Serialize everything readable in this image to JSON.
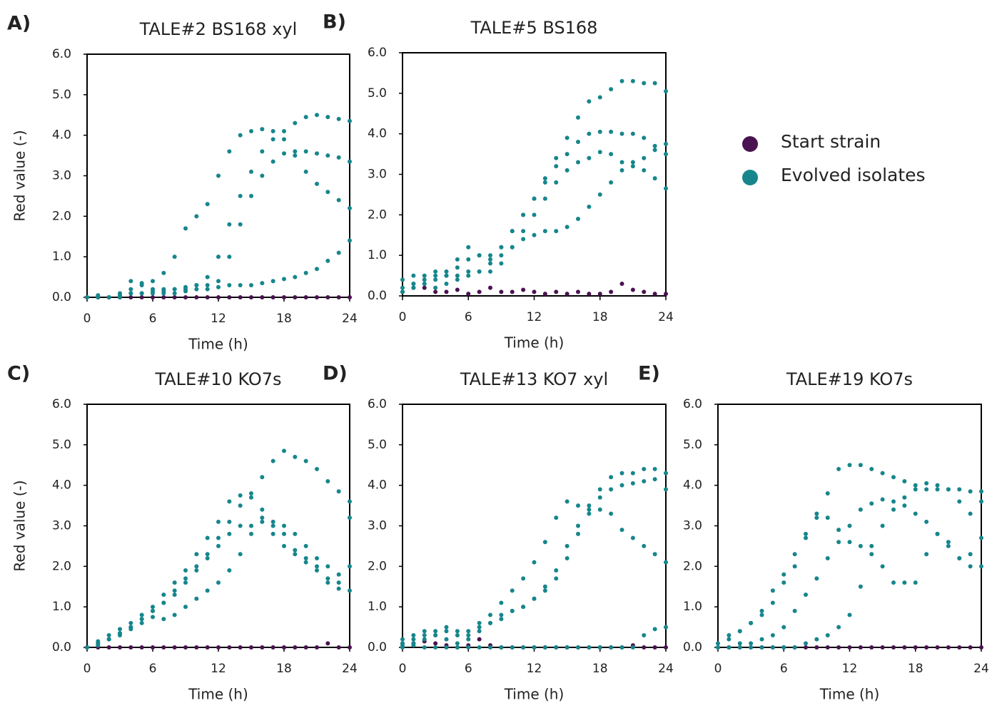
{
  "chart_data": [
    {
      "type": "scatter",
      "label": "A)",
      "title": "TALE#2 BS168 xyl",
      "xlabel": "Time (h)",
      "ylabel": "Red value (-)",
      "x": [
        0,
        1,
        2,
        3,
        4,
        5,
        6,
        7,
        8,
        9,
        10,
        11,
        12,
        13,
        14,
        15,
        16,
        17,
        18,
        19,
        20,
        21,
        22,
        23,
        24
      ],
      "xlim": [
        0,
        24
      ],
      "xticks": [
        0,
        6,
        12,
        18,
        24
      ],
      "ylim": [
        0,
        6
      ],
      "yticks": [
        {
          "value": 0,
          "label": "0.0"
        },
        {
          "value": 1,
          "label": "1.0"
        },
        {
          "value": 2,
          "label": "2.0"
        },
        {
          "value": 3,
          "label": "3.0"
        },
        {
          "value": 4,
          "label": "4.0"
        },
        {
          "value": 5,
          "label": "5.0"
        },
        {
          "value": 6,
          "label": "6.0"
        }
      ],
      "series": [
        {
          "name": "Start strain",
          "color": "#4a1250",
          "values": [
            0,
            0,
            0,
            0,
            0,
            0,
            0,
            0,
            0,
            0,
            0,
            0,
            0,
            0,
            0,
            0,
            0,
            0,
            0,
            0,
            0,
            0,
            0,
            0,
            0
          ]
        },
        {
          "name": "Evolved isolates",
          "color": "#16868c",
          "values": [
            0,
            0,
            0,
            0.05,
            0.2,
            0.3,
            0.4,
            0.6,
            1.0,
            1.7,
            2.0,
            2.3,
            3.0,
            3.6,
            4.0,
            4.1,
            4.15,
            4.1,
            3.9,
            3.5,
            3.1,
            2.8,
            2.6,
            2.4,
            2.2
          ]
        },
        {
          "name": "Evolved isolates",
          "color": "#16868c",
          "values": [
            0,
            0,
            0,
            0,
            0.1,
            0.1,
            0.15,
            0.15,
            0.1,
            0.15,
            0.3,
            0.5,
            1.0,
            1.8,
            2.5,
            3.1,
            3.6,
            3.9,
            4.1,
            4.3,
            4.45,
            4.5,
            4.45,
            4.4,
            4.35
          ]
        },
        {
          "name": "Evolved isolates",
          "color": "#16868c",
          "values": [
            0,
            0,
            0,
            0,
            0.1,
            0.1,
            0.1,
            0.2,
            0.2,
            0.2,
            0.3,
            0.3,
            0.4,
            1.0,
            1.8,
            2.5,
            3.0,
            3.35,
            3.55,
            3.6,
            3.6,
            3.55,
            3.5,
            3.45,
            3.35
          ]
        },
        {
          "name": "Evolved isolates",
          "color": "#16868c",
          "values": [
            0,
            0.05,
            0,
            0.1,
            0.4,
            0.35,
            0.2,
            0.1,
            0.2,
            0.25,
            0.2,
            0.2,
            0.25,
            0.3,
            0.3,
            0.3,
            0.35,
            0.4,
            0.45,
            0.5,
            0.6,
            0.7,
            0.9,
            1.1,
            1.4
          ]
        }
      ]
    },
    {
      "type": "scatter",
      "label": "B)",
      "title": "TALE#5 BS168",
      "xlabel": "Time (h)",
      "x": [
        0,
        1,
        2,
        3,
        4,
        5,
        6,
        7,
        8,
        9,
        10,
        11,
        12,
        13,
        14,
        15,
        16,
        17,
        18,
        19,
        20,
        21,
        22,
        23,
        24
      ],
      "xlim": [
        0,
        24
      ],
      "xticks": [
        0,
        6,
        12,
        18,
        24
      ],
      "ylim": [
        0,
        6
      ],
      "yticks": [
        {
          "value": 0,
          "label": "0.0"
        },
        {
          "value": 1,
          "label": "1.0"
        },
        {
          "value": 2,
          "label": "2.0"
        },
        {
          "value": 3,
          "label": "3.0"
        },
        {
          "value": 4,
          "label": "4.0"
        },
        {
          "value": 5,
          "label": "5.0"
        },
        {
          "value": 6,
          "label": "6.0"
        }
      ],
      "series": [
        {
          "name": "Start strain",
          "color": "#4a1250",
          "values": [
            0.1,
            0.2,
            0.2,
            0.1,
            0.1,
            0.15,
            0.05,
            0.1,
            0.2,
            0.1,
            0.1,
            0.15,
            0.1,
            0.05,
            0.1,
            0.05,
            0.1,
            0.05,
            0.05,
            0.1,
            0.3,
            0.15,
            0.1,
            0.05,
            0.05
          ]
        },
        {
          "name": "Evolved isolates",
          "color": "#16868c",
          "values": [
            0.1,
            0.3,
            0.4,
            0.5,
            0.6,
            0.7,
            0.9,
            1.0,
            1.0,
            1.2,
            1.6,
            2.0,
            2.4,
            2.9,
            3.4,
            3.9,
            4.4,
            4.8,
            4.9,
            5.1,
            5.3,
            5.3,
            5.25,
            5.25,
            5.05
          ]
        },
        {
          "name": "Evolved isolates",
          "color": "#16868c",
          "values": [
            0.4,
            0.5,
            0.5,
            0.6,
            0.5,
            0.5,
            0.6,
            0.6,
            0.8,
            1.2,
            1.6,
            2.0,
            2.4,
            2.8,
            3.2,
            3.5,
            3.8,
            4.0,
            4.05,
            4.05,
            4.0,
            4.0,
            3.9,
            3.7,
            3.5
          ]
        },
        {
          "name": "Evolved isolates",
          "color": "#16868c",
          "values": [
            0.2,
            0.3,
            0.3,
            0.2,
            0.3,
            0.4,
            0.5,
            0.6,
            0.6,
            0.8,
            1.2,
            1.6,
            2.0,
            2.4,
            2.8,
            3.1,
            3.3,
            3.4,
            3.55,
            3.5,
            3.3,
            3.2,
            3.1,
            2.9,
            2.65
          ]
        },
        {
          "name": "Evolved isolates",
          "color": "#16868c",
          "values": [
            0.1,
            0.2,
            0.3,
            0.4,
            0.5,
            0.9,
            1.2,
            1.0,
            0.9,
            1.0,
            1.2,
            1.4,
            1.5,
            1.6,
            1.6,
            1.7,
            1.9,
            2.2,
            2.5,
            2.8,
            3.1,
            3.3,
            3.4,
            3.6,
            3.75
          ]
        }
      ]
    },
    {
      "type": "scatter",
      "label": "C)",
      "title": "TALE#10 KO7s",
      "xlabel": "Time (h)",
      "ylabel": "Red value (-)",
      "x": [
        0,
        1,
        2,
        3,
        4,
        5,
        6,
        7,
        8,
        9,
        10,
        11,
        12,
        13,
        14,
        15,
        16,
        17,
        18,
        19,
        20,
        21,
        22,
        23,
        24
      ],
      "xlim": [
        0,
        24
      ],
      "xticks": [
        0,
        6,
        12,
        18,
        24
      ],
      "ylim": [
        0,
        6
      ],
      "yticks": [
        {
          "value": 0,
          "label": "0.0"
        },
        {
          "value": 1,
          "label": "1.0"
        },
        {
          "value": 2,
          "label": "2.0"
        },
        {
          "value": 3,
          "label": "3.0"
        },
        {
          "value": 4,
          "label": "4.0"
        },
        {
          "value": 5,
          "label": "5.0"
        },
        {
          "value": 6,
          "label": "6.0"
        }
      ],
      "series": [
        {
          "name": "Start strain",
          "color": "#4a1250",
          "values": [
            0,
            0,
            0,
            0,
            0,
            0,
            0,
            0,
            0,
            0,
            0,
            0,
            0,
            0,
            0,
            0,
            0,
            0,
            0,
            0,
            0,
            0,
            0.1,
            0,
            0
          ]
        },
        {
          "name": "Evolved isolates",
          "color": "#16868c",
          "values": [
            0,
            0.1,
            0.2,
            0.35,
            0.5,
            0.7,
            0.9,
            1.1,
            1.4,
            1.7,
            2.0,
            2.3,
            2.7,
            3.1,
            3.5,
            3.8,
            4.2,
            4.6,
            4.85,
            4.7,
            4.6,
            4.4,
            4.1,
            3.85,
            3.6
          ]
        },
        {
          "name": "Evolved isolates",
          "color": "#16868c",
          "values": [
            0,
            0.15,
            0.3,
            0.45,
            0.6,
            0.8,
            1.0,
            1.3,
            1.6,
            1.9,
            2.3,
            2.7,
            3.1,
            3.6,
            3.75,
            3.7,
            3.4,
            3.0,
            2.8,
            2.4,
            2.1,
            1.9,
            1.6,
            1.45,
            1.4
          ]
        },
        {
          "name": "Evolved isolates",
          "color": "#16868c",
          "values": [
            0,
            0.1,
            0.2,
            0.35,
            0.5,
            0.7,
            0.9,
            1.1,
            1.3,
            1.6,
            1.9,
            2.2,
            2.5,
            2.8,
            3.0,
            3.0,
            3.2,
            3.1,
            3.0,
            2.8,
            2.5,
            2.2,
            2.0,
            1.8,
            2.0
          ]
        },
        {
          "name": "Evolved isolates",
          "color": "#16868c",
          "values": [
            0,
            0.05,
            0.2,
            0.3,
            0.45,
            0.6,
            0.75,
            0.7,
            0.8,
            1.0,
            1.2,
            1.4,
            1.6,
            1.9,
            2.3,
            2.8,
            3.1,
            2.8,
            2.5,
            2.3,
            2.2,
            2.0,
            1.7,
            1.6,
            3.2
          ]
        }
      ]
    },
    {
      "type": "scatter",
      "label": "D)",
      "title": "TALE#13 KO7 xyl",
      "xlabel": "Time (h)",
      "x": [
        0,
        1,
        2,
        3,
        4,
        5,
        6,
        7,
        8,
        9,
        10,
        11,
        12,
        13,
        14,
        15,
        16,
        17,
        18,
        19,
        20,
        21,
        22,
        23,
        24
      ],
      "xlim": [
        0,
        24
      ],
      "xticks": [
        0,
        6,
        12,
        18,
        24
      ],
      "ylim": [
        0,
        6
      ],
      "yticks": [
        {
          "value": 0,
          "label": "0.0"
        },
        {
          "value": 1,
          "label": "1.0"
        },
        {
          "value": 2,
          "label": "2.0"
        },
        {
          "value": 3,
          "label": "3.0"
        },
        {
          "value": 4,
          "label": "4.0"
        },
        {
          "value": 5,
          "label": "5.0"
        },
        {
          "value": 6,
          "label": "6.0"
        }
      ],
      "series": [
        {
          "name": "Start strain",
          "color": "#4a1250",
          "values": [
            0.1,
            0.1,
            0.15,
            0.1,
            0.05,
            0,
            0.05,
            0.2,
            0.05,
            0,
            0,
            0,
            0,
            0,
            0,
            0,
            0,
            0,
            0,
            0,
            0,
            0.05,
            0,
            0,
            0
          ]
        },
        {
          "name": "Evolved isolates",
          "color": "#16868c",
          "values": [
            0.1,
            0.2,
            0.3,
            0.4,
            0.4,
            0.3,
            0.4,
            0.6,
            0.8,
            1.1,
            1.4,
            1.7,
            2.1,
            2.6,
            3.2,
            3.6,
            3.5,
            3.4,
            3.4,
            3.3,
            2.9,
            2.7,
            2.5,
            2.3,
            2.1
          ]
        },
        {
          "name": "Evolved isolates",
          "color": "#16868c",
          "values": [
            0.2,
            0.3,
            0.4,
            0.3,
            0.5,
            0.4,
            0.3,
            0.5,
            0.6,
            0.8,
            0.9,
            1.0,
            1.2,
            1.5,
            1.9,
            2.5,
            3.0,
            3.5,
            3.9,
            4.2,
            4.3,
            4.3,
            4.4,
            4.4,
            4.3
          ]
        },
        {
          "name": "Evolved isolates",
          "color": "#16868c",
          "values": [
            0.05,
            0.1,
            0.2,
            0.3,
            0.2,
            0.1,
            0.2,
            0.4,
            0.6,
            0.7,
            0.9,
            1.0,
            1.2,
            1.4,
            1.7,
            2.2,
            2.8,
            3.3,
            3.7,
            3.9,
            4.0,
            4.05,
            4.1,
            4.15,
            3.9
          ]
        },
        {
          "name": "Evolved isolates",
          "color": "#16868c",
          "values": [
            0,
            0.05,
            0,
            0,
            0,
            0,
            0,
            0,
            0,
            0,
            0,
            0,
            0,
            0,
            0,
            0,
            0,
            0,
            0,
            0,
            0,
            0,
            0.3,
            0.45,
            0.5
          ]
        }
      ]
    },
    {
      "type": "scatter",
      "label": "E)",
      "title": "TALE#19 KO7s",
      "xlabel": "Time (h)",
      "x": [
        0,
        1,
        2,
        3,
        4,
        5,
        6,
        7,
        8,
        9,
        10,
        11,
        12,
        13,
        14,
        15,
        16,
        17,
        18,
        19,
        20,
        21,
        22,
        23,
        24
      ],
      "xlim": [
        0,
        24
      ],
      "xticks": [
        0,
        6,
        12,
        18,
        24
      ],
      "ylim": [
        0,
        6
      ],
      "yticks": [
        {
          "value": 0,
          "label": "0.0"
        },
        {
          "value": 1,
          "label": "1.0"
        },
        {
          "value": 2,
          "label": "2.0"
        },
        {
          "value": 3,
          "label": "3.0"
        },
        {
          "value": 4,
          "label": "4.0"
        },
        {
          "value": 5,
          "label": "5.0"
        },
        {
          "value": 6,
          "label": "6.0"
        }
      ],
      "series": [
        {
          "name": "Start strain",
          "color": "#4a1250",
          "values": [
            0,
            0,
            0,
            0,
            0,
            0,
            0,
            0,
            0,
            0,
            0,
            0,
            0,
            0,
            0,
            0,
            0,
            0,
            0,
            0,
            0,
            0,
            0,
            0,
            0
          ]
        },
        {
          "name": "Evolved isolates",
          "color": "#16868c",
          "values": [
            0.1,
            0.3,
            0.4,
            0.6,
            0.8,
            1.1,
            1.6,
            2.0,
            2.7,
            3.3,
            3.8,
            4.4,
            4.5,
            4.5,
            4.4,
            4.3,
            4.2,
            4.1,
            4.0,
            3.9,
            3.9,
            3.9,
            3.9,
            3.85,
            3.85
          ]
        },
        {
          "name": "Evolved isolates",
          "color": "#16868c",
          "values": [
            0,
            0.2,
            0.4,
            0.6,
            0.9,
            1.4,
            1.8,
            2.3,
            2.8,
            3.2,
            3.2,
            2.9,
            2.6,
            2.5,
            2.3,
            2.0,
            1.6,
            1.6,
            1.6,
            2.3,
            2.8,
            2.6,
            2.2,
            2.3,
            2.7
          ]
        },
        {
          "name": "Evolved isolates",
          "color": "#16868c",
          "values": [
            0,
            0,
            0.1,
            0.1,
            0.2,
            0.3,
            0.5,
            0.9,
            1.3,
            1.7,
            2.2,
            2.6,
            3.0,
            3.4,
            3.55,
            3.65,
            3.6,
            3.5,
            3.3,
            3.1,
            2.8,
            2.5,
            2.2,
            2.0,
            2.0
          ]
        },
        {
          "name": "Evolved isolates",
          "color": "#16868c",
          "values": [
            0,
            0,
            0,
            0,
            0,
            0,
            0,
            0,
            0.1,
            0.2,
            0.3,
            0.5,
            0.8,
            1.5,
            2.5,
            3.0,
            3.4,
            3.7,
            3.9,
            4.05,
            4.0,
            3.9,
            3.6,
            3.3,
            3.6
          ]
        }
      ]
    }
  ]
}
